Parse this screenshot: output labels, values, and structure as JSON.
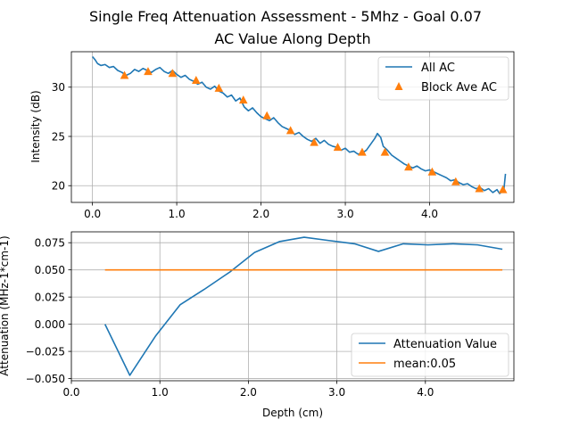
{
  "titles": {
    "main": "Single Freq Attenuation Assessment - 5Mhz - Goal 0.07",
    "sub": "AC Value Along Depth"
  },
  "colors": {
    "blue": "#1f77b4",
    "orange": "#ff7f0e"
  },
  "chart_data": [
    {
      "type": "line",
      "ylabel": "Intensity (dB)",
      "xlim": [
        -0.25,
        5.0
      ],
      "ylim": [
        18.3,
        33.6
      ],
      "grid": true,
      "legend_placement": "top-right",
      "x_ticks": [
        0.0,
        1.0,
        2.0,
        3.0,
        4.0
      ],
      "x_tick_labels": [
        "0.0",
        "1.0",
        "2.0",
        "3.0",
        "4.0"
      ],
      "y_ticks": [
        20,
        25,
        30
      ],
      "y_tick_labels": [
        "20",
        "25",
        "30"
      ],
      "series": [
        {
          "name": "All AC",
          "kind": "line",
          "x": [
            0.0,
            0.03,
            0.06,
            0.1,
            0.15,
            0.2,
            0.25,
            0.3,
            0.35,
            0.4,
            0.45,
            0.5,
            0.55,
            0.6,
            0.65,
            0.7,
            0.75,
            0.8,
            0.85,
            0.9,
            0.95,
            1.0,
            1.05,
            1.1,
            1.15,
            1.2,
            1.25,
            1.3,
            1.35,
            1.4,
            1.45,
            1.5,
            1.55,
            1.6,
            1.65,
            1.7,
            1.75,
            1.8,
            1.85,
            1.9,
            1.95,
            2.0,
            2.05,
            2.1,
            2.15,
            2.2,
            2.25,
            2.3,
            2.35,
            2.4,
            2.45,
            2.5,
            2.55,
            2.6,
            2.65,
            2.7,
            2.75,
            2.8,
            2.85,
            2.9,
            2.95,
            3.0,
            3.05,
            3.1,
            3.15,
            3.2,
            3.25,
            3.3,
            3.35,
            3.38,
            3.42,
            3.45,
            3.5,
            3.55,
            3.6,
            3.65,
            3.7,
            3.75,
            3.8,
            3.85,
            3.9,
            3.95,
            4.0,
            4.05,
            4.1,
            4.15,
            4.2,
            4.25,
            4.3,
            4.35,
            4.4,
            4.45,
            4.5,
            4.55,
            4.6,
            4.65,
            4.7,
            4.75,
            4.8,
            4.83,
            4.86,
            4.88,
            4.9
          ],
          "y": [
            33.1,
            32.8,
            32.4,
            32.2,
            32.3,
            32.0,
            32.1,
            31.7,
            31.5,
            31.2,
            31.4,
            31.8,
            31.6,
            31.9,
            31.7,
            31.5,
            31.8,
            32.0,
            31.6,
            31.4,
            31.7,
            31.3,
            31.0,
            31.2,
            30.8,
            30.6,
            30.3,
            30.5,
            30.0,
            29.8,
            30.1,
            29.6,
            29.4,
            29.0,
            29.2,
            28.6,
            28.9,
            28.0,
            27.6,
            27.9,
            27.4,
            27.0,
            26.8,
            26.6,
            26.9,
            26.4,
            26.0,
            25.8,
            25.6,
            25.2,
            25.4,
            25.0,
            24.7,
            24.5,
            24.8,
            24.3,
            24.6,
            24.2,
            24.0,
            23.9,
            23.6,
            23.8,
            23.4,
            23.5,
            23.2,
            23.3,
            23.6,
            24.2,
            24.8,
            25.3,
            24.9,
            24.0,
            23.6,
            23.1,
            22.8,
            22.5,
            22.2,
            22.0,
            21.8,
            22.0,
            21.7,
            21.5,
            21.6,
            21.4,
            21.2,
            21.0,
            20.8,
            20.5,
            20.6,
            20.3,
            20.1,
            20.2,
            19.9,
            19.7,
            19.8,
            19.5,
            19.7,
            19.3,
            19.6,
            19.2,
            19.4,
            19.5,
            21.2
          ]
        },
        {
          "name": "Block Ave AC",
          "kind": "marker",
          "marker": "triangle",
          "x": [
            0.38,
            0.66,
            0.95,
            1.23,
            1.5,
            1.79,
            2.07,
            2.35,
            2.63,
            2.91,
            3.2,
            3.47,
            3.75,
            4.03,
            4.31,
            4.59,
            4.87
          ],
          "y": [
            31.2,
            31.6,
            31.4,
            30.7,
            29.9,
            28.7,
            27.1,
            25.6,
            24.4,
            23.9,
            23.4,
            23.4,
            21.9,
            21.4,
            20.4,
            19.7,
            19.6
          ]
        }
      ]
    },
    {
      "type": "line",
      "xlabel": "Depth (cm)",
      "ylabel": "Attenuation (MHz-1*cm-1)",
      "xlim": [
        0.0,
        5.0
      ],
      "ylim": [
        -0.052,
        0.085
      ],
      "grid": true,
      "legend_placement": "lower-right",
      "x_ticks": [
        0.0,
        1.0,
        2.0,
        3.0,
        4.0
      ],
      "x_tick_labels": [
        "0.0",
        "1.0",
        "2.0",
        "3.0",
        "4.0"
      ],
      "y_ticks": [
        -0.05,
        -0.025,
        0.0,
        0.025,
        0.05,
        0.075
      ],
      "y_tick_labels": [
        "−0.050",
        "−0.025",
        "0.000",
        "0.025",
        "0.050",
        "0.075"
      ],
      "series": [
        {
          "name": "Attenuation Value",
          "kind": "line",
          "x": [
            0.38,
            0.66,
            0.95,
            1.23,
            1.5,
            1.79,
            2.07,
            2.35,
            2.63,
            2.91,
            3.2,
            3.47,
            3.75,
            4.03,
            4.31,
            4.59,
            4.87
          ],
          "y": [
            0.0,
            -0.047,
            -0.011,
            0.018,
            0.032,
            0.048,
            0.066,
            0.076,
            0.08,
            0.077,
            0.074,
            0.067,
            0.074,
            0.073,
            0.074,
            0.073,
            0.069
          ]
        },
        {
          "name": "mean:0.05",
          "kind": "line",
          "x": [
            0.38,
            4.87
          ],
          "y": [
            0.05,
            0.05
          ]
        }
      ]
    }
  ]
}
